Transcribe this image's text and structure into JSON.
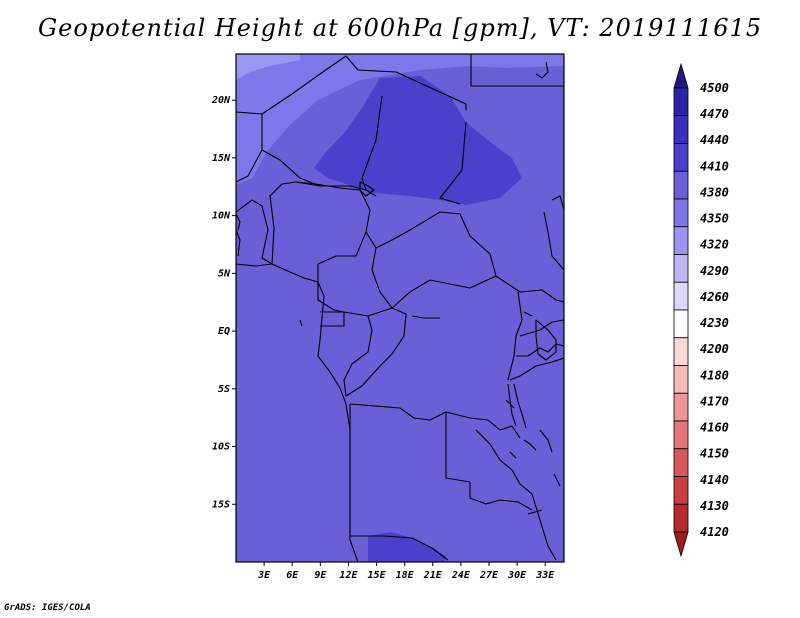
{
  "title": "Geopotential Height at 600hPa [gpm], VT: 2019111615",
  "credit": "GrADS: IGES/COLA",
  "map": {
    "variable": "Geopotential Height",
    "level": "600hPa",
    "units": "gpm",
    "valid_time": "2019111615",
    "lon_range": [
      0,
      35
    ],
    "lat_range": [
      -20,
      24
    ],
    "lat_labels": [
      "20N",
      "15N",
      "10N",
      "5N",
      "EQ",
      "5S",
      "10S",
      "15S"
    ],
    "lat_values": [
      20,
      15,
      10,
      5,
      0,
      -5,
      -10,
      -15
    ],
    "lon_labels": [
      "3E",
      "6E",
      "9E",
      "12E",
      "15E",
      "18E",
      "21E",
      "24E",
      "27E",
      "30E",
      "33E"
    ],
    "lon_values": [
      3,
      6,
      9,
      12,
      15,
      18,
      21,
      24,
      27,
      30,
      33
    ],
    "regions": [
      {
        "name": "background",
        "level": "4380-4410",
        "color": "#6a5fd6"
      },
      {
        "name": "northwest",
        "level": "4350-4380",
        "color": "#7f76ea"
      },
      {
        "name": "northwest-corner",
        "level": "4320-4350",
        "color": "#9d95f2"
      },
      {
        "name": "sahel-low",
        "level": "4410-4440",
        "color": "#4c3fcc"
      },
      {
        "name": "southern-patch",
        "level": "4410-4440",
        "color": "#4c3fcc"
      }
    ]
  },
  "colorbar": {
    "levels": [
      "4500",
      "4470",
      "4440",
      "4410",
      "4380",
      "4350",
      "4320",
      "4290",
      "4260",
      "4230",
      "4200",
      "4180",
      "4170",
      "4160",
      "4150",
      "4140",
      "4130",
      "4120"
    ],
    "colors": [
      "#231886",
      "#2e23a8",
      "#3a2fbf",
      "#4c3fcc",
      "#6a5fd6",
      "#7f76ea",
      "#9d95f2",
      "#bdb7f7",
      "#dcd8fb",
      "#ffffff",
      "#fbd7d7",
      "#f5b8b8",
      "#ec9696",
      "#e37777",
      "#d95959",
      "#cc3f3f",
      "#b82a2a",
      "#9e1c1c"
    ]
  }
}
